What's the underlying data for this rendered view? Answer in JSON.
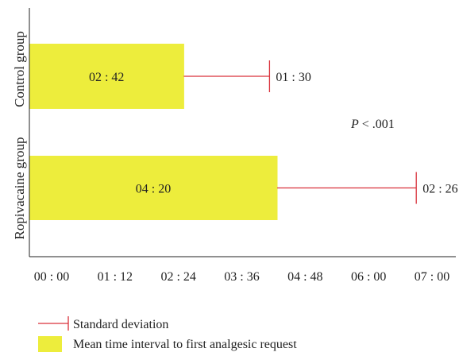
{
  "chart_data": {
    "type": "bar",
    "orientation": "horizontal",
    "x_unit": "hh:mm",
    "categories": [
      "Control group",
      "Ropivacaine group"
    ],
    "series": [
      {
        "name": "Mean time interval to first analgesic request",
        "values": [
          "02:42",
          "04:20"
        ],
        "value_labels": [
          "02 : 42",
          "04 : 20"
        ]
      }
    ],
    "error_bars": {
      "name": "Standard deviation",
      "values": [
        "01:30",
        "02:26"
      ],
      "labels": [
        "01 : 30",
        "02 : 26"
      ]
    },
    "x_ticks": [
      "00 : 00",
      "01 : 12",
      "02 : 24",
      "03 : 36",
      "04 : 48",
      "06 : 00",
      "07 : 00"
    ],
    "xlim": [
      "00:00",
      "07:00"
    ],
    "annotation": {
      "italic": "P",
      "text": " < .001"
    },
    "legend": {
      "placement": "bottom-left",
      "items": [
        {
          "kind": "error-bar",
          "label": "Standard deviation"
        },
        {
          "kind": "bar",
          "label": "Mean time interval to first analgesic request"
        }
      ]
    },
    "grid": false,
    "colors": {
      "bar": "#eded3c",
      "error_bar": "#d9303a",
      "axis": "#222222"
    }
  }
}
